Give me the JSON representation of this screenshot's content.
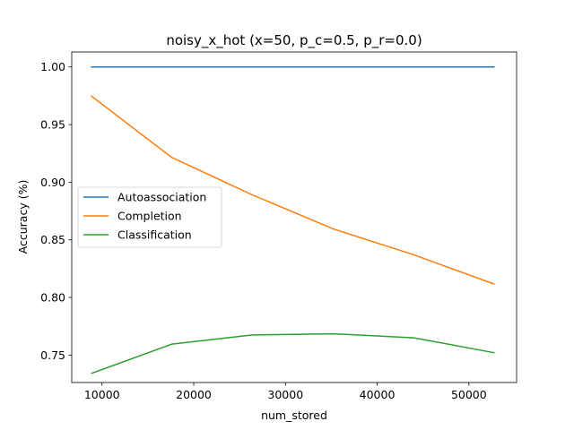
{
  "chart_data": {
    "type": "line",
    "title": "noisy_x_hot (x=50, p_c=0.5, p_r=0.0)",
    "xlabel": "num_stored",
    "ylabel": "Accuracy (%)",
    "xlim": [
      6700,
      55200
    ],
    "ylim": [
      0.7262,
      1.013
    ],
    "xticks": [
      10000,
      20000,
      30000,
      40000,
      50000
    ],
    "xtick_labels": [
      "10000",
      "20000",
      "30000",
      "40000",
      "50000"
    ],
    "yticks": [
      0.75,
      0.8,
      0.85,
      0.9,
      0.95,
      1.0
    ],
    "ytick_labels": [
      "0.75",
      "0.80",
      "0.85",
      "0.90",
      "0.95",
      "1.00"
    ],
    "grid": false,
    "legend_position": "center-left",
    "x": [
      8800,
      17600,
      26400,
      35200,
      44000,
      52800
    ],
    "series": [
      {
        "name": "Autoassociation",
        "color": "#1f77b4",
        "values": [
          1.0,
          1.0,
          1.0,
          1.0,
          1.0,
          1.0
        ]
      },
      {
        "name": "Completion",
        "color": "#ff7f0e",
        "values": [
          0.975,
          0.9215,
          0.889,
          0.8595,
          0.837,
          0.8115
        ]
      },
      {
        "name": "Classification",
        "color": "#2ca02c",
        "values": [
          0.734,
          0.7595,
          0.7675,
          0.7685,
          0.765,
          0.752
        ]
      }
    ]
  }
}
